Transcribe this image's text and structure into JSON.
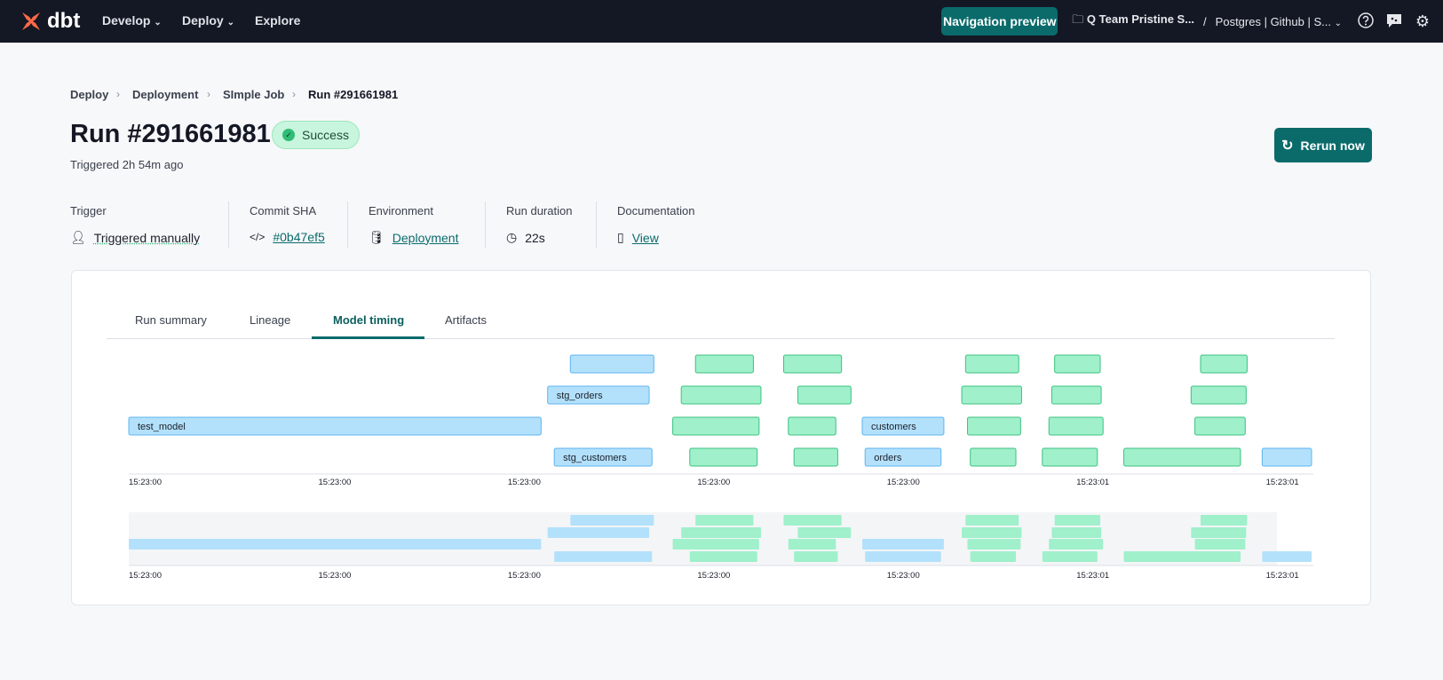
{
  "topbar": {
    "logo": "dbt",
    "nav": [
      {
        "label": "Develop",
        "chevron": true
      },
      {
        "label": "Deploy",
        "chevron": true
      },
      {
        "label": "Explore",
        "chevron": false
      }
    ],
    "navigation_preview": "Navigation preview",
    "project": "Q Team Pristine S...",
    "separator": "/",
    "environment": "Postgres | Github | S...",
    "icons": [
      "help-icon",
      "feedback-chat-icon",
      "gear-icon"
    ]
  },
  "breadcrumb": [
    "Deploy",
    "Deployment",
    "SImple Job",
    "Run #291661981"
  ],
  "run": {
    "title": "Run #291661981",
    "status": "Success",
    "triggered": "Triggered 2h 54m ago",
    "rerun_label": "Rerun now"
  },
  "meta": [
    {
      "label": "Trigger",
      "value": "Triggered manually",
      "icon": "user-icon",
      "link": false
    },
    {
      "label": "Commit SHA",
      "value": "#0b47ef5",
      "icon": "code-icon",
      "link": true
    },
    {
      "label": "Environment",
      "value": "Deployment",
      "icon": "database-icon",
      "link": true
    },
    {
      "label": "Run duration",
      "value": "22s",
      "icon": "clock-icon",
      "link": false
    },
    {
      "label": "Documentation",
      "value": "View",
      "icon": "book-icon",
      "link": true
    }
  ],
  "tabs": [
    {
      "label": "Run summary",
      "active": false
    },
    {
      "label": "Lineage",
      "active": false
    },
    {
      "label": "Model timing",
      "active": true
    },
    {
      "label": "Artifacts",
      "active": false
    }
  ],
  "colors": {
    "accent": "#0b6b6b",
    "model_fill": "#b3e1fb",
    "model_stroke": "#5fb4ef",
    "test_fill": "#9ff0cb",
    "test_stroke": "#3dc27f",
    "success": "#2fbd76"
  },
  "chart_data": {
    "type": "gantt",
    "x_domain": [
      "15:23:00.000",
      "15:23:01.250"
    ],
    "x_ticks": [
      {
        "time": "15:23:00.000",
        "label": "15:23:00"
      },
      {
        "time": "15:23:00.200",
        "label": "15:23:00"
      },
      {
        "time": "15:23:00.400",
        "label": "15:23:00"
      },
      {
        "time": "15:23:00.600",
        "label": "15:23:00"
      },
      {
        "time": "15:23:00.800",
        "label": "15:23:00"
      },
      {
        "time": "15:23:01.000",
        "label": "15:23:01"
      },
      {
        "time": "15:23:01.200",
        "label": "15:23:01"
      }
    ],
    "grid": false,
    "bars": [
      {
        "label": "",
        "kind": "model",
        "row": 0,
        "start": "15:23:00.466",
        "end": "15:23:00.556"
      },
      {
        "label": "stg_orders",
        "kind": "model",
        "row": 1,
        "start": "15:23:00.442",
        "end": "15:23:00.551"
      },
      {
        "label": "test_model",
        "kind": "model",
        "row": 2,
        "start": "15:23:00.000",
        "end": "15:23:00.437"
      },
      {
        "label": "stg_customers",
        "kind": "model",
        "row": 3,
        "start": "15:23:00.449",
        "end": "15:23:00.554"
      },
      {
        "label": "customers",
        "kind": "model",
        "row": 2,
        "start": "15:23:00.774",
        "end": "15:23:00.862"
      },
      {
        "label": "orders",
        "kind": "model",
        "row": 3,
        "start": "15:23:00.777",
        "end": "15:23:00.859"
      },
      {
        "label": "",
        "kind": "model",
        "row": 3,
        "start": "15:23:01.196",
        "end": "15:23:01.250"
      },
      {
        "label": "",
        "kind": "test",
        "row": 0,
        "start": "15:23:00.598",
        "end": "15:23:00.661"
      },
      {
        "label": "",
        "kind": "test",
        "row": 0,
        "start": "15:23:00.691",
        "end": "15:23:00.754"
      },
      {
        "label": "",
        "kind": "test",
        "row": 0,
        "start": "15:23:00.883",
        "end": "15:23:00.941"
      },
      {
        "label": "",
        "kind": "test",
        "row": 0,
        "start": "15:23:00.977",
        "end": "15:23:01.027"
      },
      {
        "label": "",
        "kind": "test",
        "row": 0,
        "start": "15:23:01.131",
        "end": "15:23:01.182"
      },
      {
        "label": "",
        "kind": "test",
        "row": 1,
        "start": "15:23:00.583",
        "end": "15:23:00.669"
      },
      {
        "label": "",
        "kind": "test",
        "row": 1,
        "start": "15:23:00.706",
        "end": "15:23:00.764"
      },
      {
        "label": "",
        "kind": "test",
        "row": 1,
        "start": "15:23:00.879",
        "end": "15:23:00.944"
      },
      {
        "label": "",
        "kind": "test",
        "row": 1,
        "start": "15:23:00.974",
        "end": "15:23:01.028"
      },
      {
        "label": "",
        "kind": "test",
        "row": 1,
        "start": "15:23:01.121",
        "end": "15:23:01.181"
      },
      {
        "label": "",
        "kind": "test",
        "row": 2,
        "start": "15:23:00.574",
        "end": "15:23:00.667"
      },
      {
        "label": "",
        "kind": "test",
        "row": 2,
        "start": "15:23:00.696",
        "end": "15:23:00.748"
      },
      {
        "label": "",
        "kind": "test",
        "row": 2,
        "start": "15:23:00.885",
        "end": "15:23:00.943"
      },
      {
        "label": "",
        "kind": "test",
        "row": 2,
        "start": "15:23:00.971",
        "end": "15:23:01.030"
      },
      {
        "label": "",
        "kind": "test",
        "row": 2,
        "start": "15:23:01.125",
        "end": "15:23:01.180"
      },
      {
        "label": "",
        "kind": "test",
        "row": 3,
        "start": "15:23:00.592",
        "end": "15:23:00.665"
      },
      {
        "label": "",
        "kind": "test",
        "row": 3,
        "start": "15:23:00.702",
        "end": "15:23:00.750"
      },
      {
        "label": "",
        "kind": "test",
        "row": 3,
        "start": "15:23:00.888",
        "end": "15:23:00.938"
      },
      {
        "label": "",
        "kind": "test",
        "row": 3,
        "start": "15:23:00.964",
        "end": "15:23:01.024"
      },
      {
        "label": "",
        "kind": "test",
        "row": 3,
        "start": "15:23:01.050",
        "end": "15:23:01.175"
      }
    ]
  }
}
